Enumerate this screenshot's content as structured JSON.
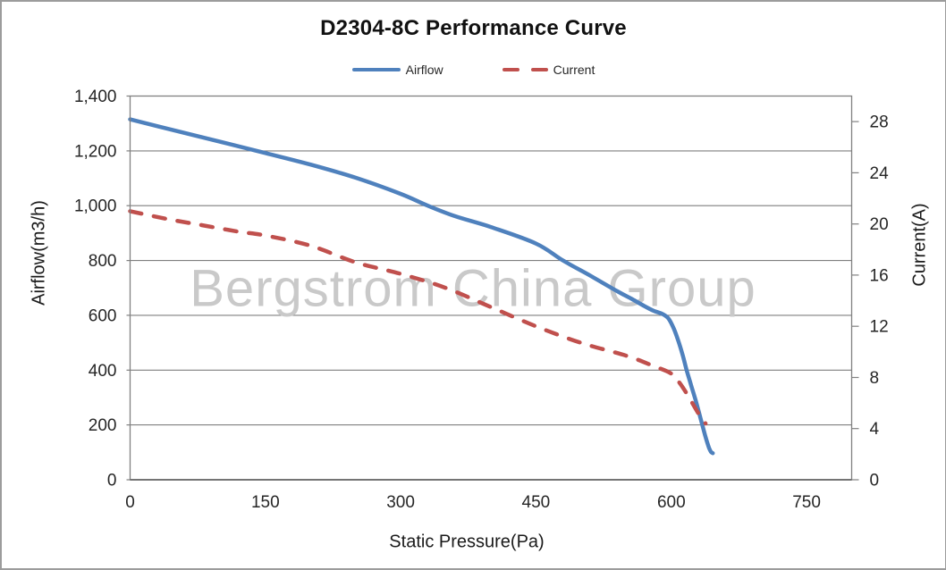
{
  "chart_data": {
    "type": "line",
    "title": "D2304-8C Performance Curve",
    "watermark": "Bergstrom China Group",
    "grid": "horizontal-only",
    "legend": {
      "position": "top",
      "entries": [
        {
          "label": "Airflow",
          "color": "#4F81BD",
          "line_style": "solid"
        },
        {
          "label": "Current",
          "color": "#C0504D",
          "line_style": "dashed"
        }
      ]
    },
    "x_axis": {
      "title": "Static Pressure(Pa)",
      "min": 0,
      "max": 800,
      "tick_interval": 150,
      "tick_values": [
        0,
        150,
        300,
        450,
        600,
        750
      ],
      "tick_labels": [
        "0",
        "150",
        "300",
        "450",
        "600",
        "750"
      ]
    },
    "y_left": {
      "title": "Airflow(m3/h)",
      "min": 0,
      "max": 1400,
      "tick_interval": 200,
      "tick_values": [
        0,
        200,
        400,
        600,
        800,
        1000,
        1200,
        1400
      ],
      "tick_labels": [
        "0",
        "200",
        "400",
        "600",
        "800",
        "1,000",
        "1,200",
        "1,400"
      ]
    },
    "y_right": {
      "title": "Current(A)",
      "min": 0,
      "max": 30,
      "tick_interval": 4,
      "tick_values": [
        0,
        4,
        8,
        12,
        16,
        20,
        24,
        28
      ],
      "tick_labels": [
        "0",
        "4",
        "8",
        "12",
        "16",
        "20",
        "24",
        "28"
      ]
    },
    "series": [
      {
        "name": "Airflow",
        "axis": "left",
        "color": "#4F81BD",
        "line_style": "solid",
        "points": [
          [
            0,
            1315
          ],
          [
            50,
            1274
          ],
          [
            100,
            1233
          ],
          [
            150,
            1192
          ],
          [
            200,
            1150
          ],
          [
            250,
            1102
          ],
          [
            300,
            1043
          ],
          [
            330,
            1000
          ],
          [
            360,
            962
          ],
          [
            400,
            922
          ],
          [
            450,
            862
          ],
          [
            480,
            800
          ],
          [
            510,
            745
          ],
          [
            540,
            688
          ],
          [
            556,
            660
          ],
          [
            570,
            634
          ],
          [
            580,
            617
          ],
          [
            590,
            605
          ],
          [
            597,
            588
          ],
          [
            603,
            550
          ],
          [
            608,
            505
          ],
          [
            613,
            450
          ],
          [
            617,
            400
          ],
          [
            622,
            345
          ],
          [
            627,
            290
          ],
          [
            632,
            230
          ],
          [
            636,
            180
          ],
          [
            639,
            145
          ],
          [
            642,
            115
          ],
          [
            644,
            102
          ],
          [
            646,
            97
          ]
        ]
      },
      {
        "name": "Current",
        "axis": "right",
        "color": "#C0504D",
        "line_style": "dashed",
        "points": [
          [
            0,
            21.0
          ],
          [
            40,
            20.4
          ],
          [
            80,
            19.9
          ],
          [
            120,
            19.4
          ],
          [
            150,
            19.1
          ],
          [
            200,
            18.3
          ],
          [
            250,
            17.0
          ],
          [
            300,
            16.1
          ],
          [
            350,
            15.0
          ],
          [
            400,
            13.5
          ],
          [
            450,
            12.0
          ],
          [
            500,
            10.7
          ],
          [
            550,
            9.7
          ],
          [
            580,
            8.9
          ],
          [
            600,
            8.3
          ],
          [
            610,
            7.5
          ],
          [
            620,
            6.4
          ],
          [
            630,
            5.2
          ],
          [
            638,
            4.4
          ]
        ]
      }
    ]
  }
}
